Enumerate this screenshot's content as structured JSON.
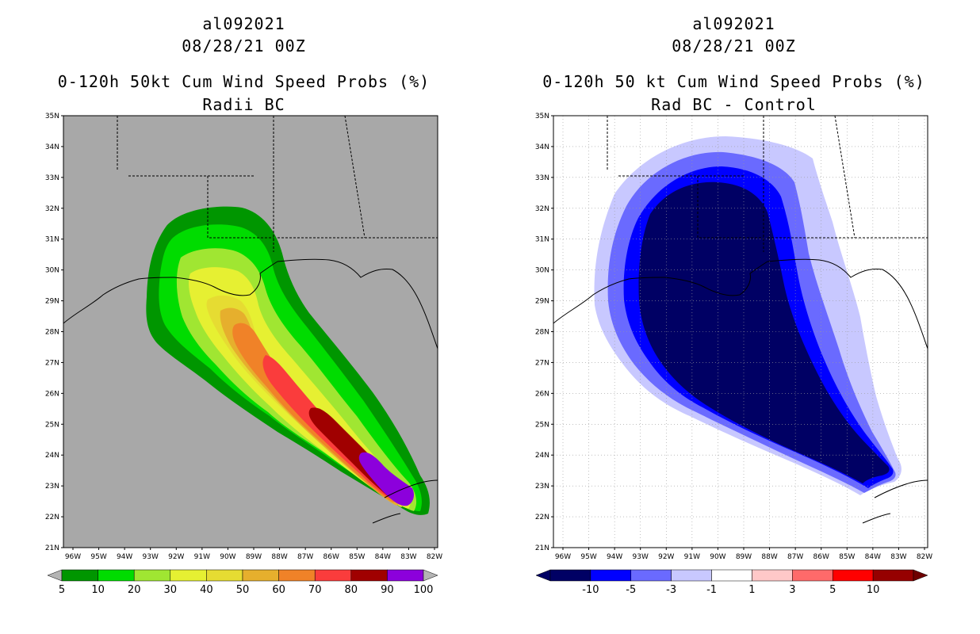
{
  "left_panel": {
    "title_lines": [
      "al092021",
      "08/28/21 00Z",
      "0-120h 50kt Cum Wind Speed Probs (%)",
      "Radii BC"
    ],
    "lat_labels": [
      "21N",
      "22N",
      "23N",
      "24N",
      "25N",
      "26N",
      "27N",
      "28N",
      "29N",
      "30N",
      "31N",
      "32N",
      "33N",
      "34N",
      "35N"
    ],
    "lon_labels": [
      "96W",
      "95W",
      "94W",
      "93W",
      "92W",
      "91W",
      "90W",
      "89W",
      "88W",
      "87W",
      "86W",
      "85W",
      "84W",
      "83W",
      "82W"
    ],
    "colorbar": {
      "labels": [
        "5",
        "10",
        "20",
        "30",
        "40",
        "50",
        "60",
        "70",
        "80",
        "90",
        "100"
      ],
      "colors": [
        "#009600",
        "#00dc00",
        "#a0e632",
        "#e6f032",
        "#e6dc32",
        "#e6af2d",
        "#f08228",
        "#fa3c3c",
        "#a00000",
        "#8c00dc"
      ],
      "below_color": "#b4b4b4",
      "above_color": "#b4b4b4"
    },
    "background_color": "#a8a8a8"
  },
  "right_panel": {
    "title_lines": [
      "al092021",
      "08/28/21 00Z",
      "0-120h 50 kt Cum Wind Speed Probs (%)",
      "Rad BC - Control"
    ],
    "lat_labels": [
      "21N",
      "22N",
      "23N",
      "24N",
      "25N",
      "26N",
      "27N",
      "28N",
      "29N",
      "30N",
      "31N",
      "32N",
      "33N",
      "34N",
      "35N"
    ],
    "lon_labels": [
      "96W",
      "95W",
      "94W",
      "93W",
      "92W",
      "91W",
      "90W",
      "89W",
      "88W",
      "87W",
      "86W",
      "85W",
      "84W",
      "83W",
      "82W"
    ],
    "colorbar": {
      "labels": [
        "-10",
        "-5",
        "-3",
        "-1",
        "1",
        "3",
        "5",
        "10"
      ],
      "colors": [
        "#000064",
        "#0000ff",
        "#6a6aff",
        "#c8c8ff",
        "#ffffff",
        "#ffc8c8",
        "#ff6a6a",
        "#ff0000",
        "#960000"
      ],
      "below_color": "#000064",
      "above_color": "#6e0000"
    },
    "background_color": "#ffffff"
  }
}
